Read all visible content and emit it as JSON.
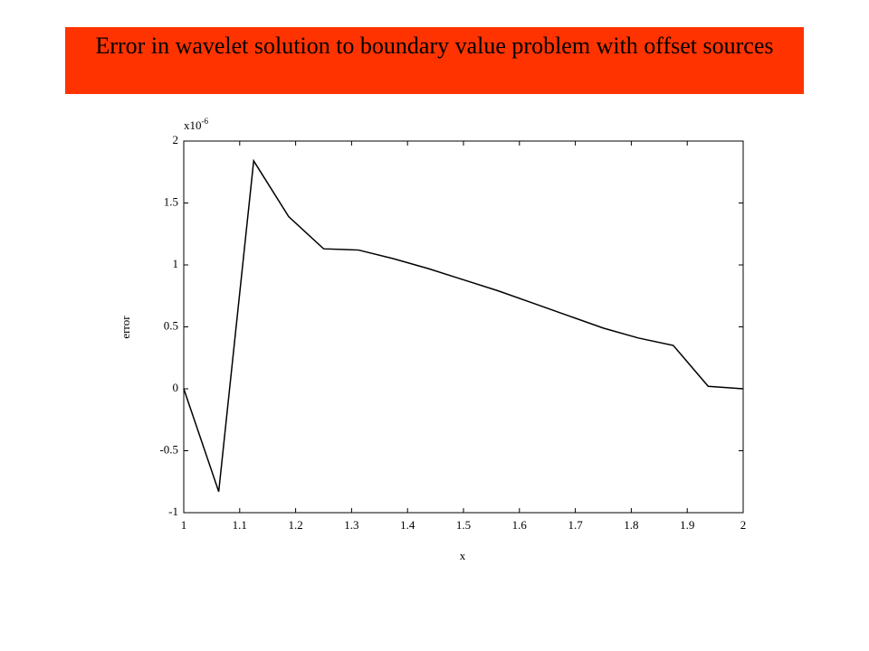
{
  "chart_data": {
    "type": "line",
    "title": "Error in wavelet solution to boundary value problem with offset sources",
    "x_label": "x",
    "y_label": "error",
    "y_multiplier": {
      "base": "x10",
      "exponent": "-6"
    },
    "x": [
      1,
      1.0625,
      1.125,
      1.1875,
      1.25,
      1.3125,
      1.375,
      1.4375,
      1.5,
      1.5625,
      1.625,
      1.6875,
      1.75,
      1.8125,
      1.875,
      1.9375,
      2
    ],
    "series": [
      {
        "color": "#000000",
        "values": [
          0,
          -0.83,
          1.84,
          1.39,
          1.13,
          1.12,
          1.05,
          0.97,
          0.88,
          0.79,
          0.69,
          0.59,
          0.49,
          0.41,
          0.35,
          0.02,
          0
        ]
      }
    ],
    "xlim": [
      1,
      2
    ],
    "xticks": [
      1,
      1.1,
      1.2,
      1.3,
      1.4,
      1.5,
      1.6,
      1.7,
      1.8,
      1.9,
      2
    ],
    "ylim": [
      -1,
      2
    ],
    "yticks": [
      -1,
      -0.5,
      0,
      0.5,
      1,
      1.5,
      2
    ],
    "grid": false
  }
}
